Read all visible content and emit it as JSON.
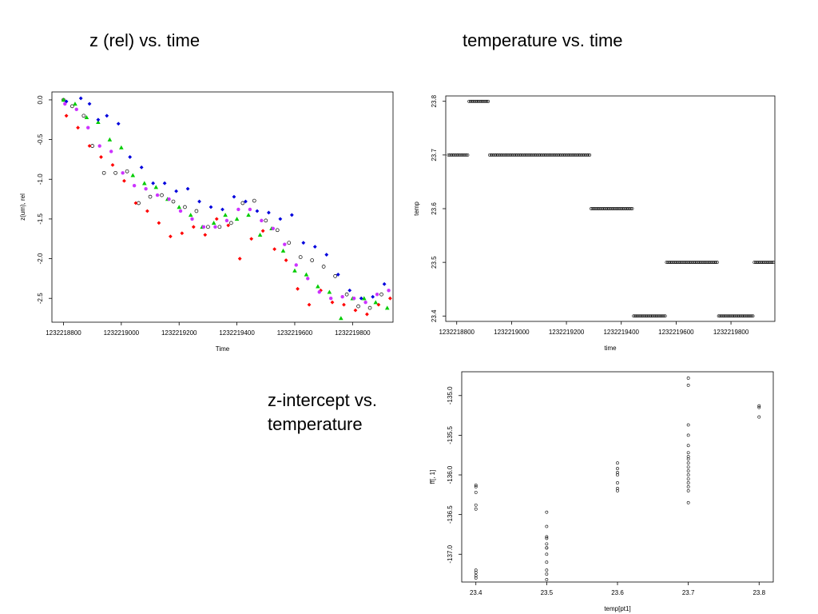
{
  "slide": {
    "title_1": "z (rel) vs. time",
    "title_2": "temperature vs. time",
    "title_3": "z-intercept vs. temperature"
  },
  "chart_data": [
    {
      "type": "scatter",
      "title": "",
      "xlabel": "Time",
      "ylabel": "z(um), rel",
      "xlim": [
        1232218760,
        1232219940
      ],
      "ylim": [
        -2.8,
        0.1
      ],
      "xticks": [
        1232218800,
        1232219000,
        1232219200,
        1232219400,
        1232219600,
        1232219800
      ],
      "xtick_labels": [
        "1232218800",
        "1232219000",
        "1232219200",
        "1232219400",
        "1232219600",
        "1232219800"
      ],
      "yticks": [
        0,
        -0.5,
        -1,
        -1.5,
        -2,
        -2.5
      ],
      "ytick_labels": [
        "0.0",
        "-0.5",
        "-1.0",
        "-1.5",
        "-2.0",
        "-2.5"
      ],
      "grid": false,
      "series": [
        {
          "color": "#000000",
          "marker": "circle-open",
          "x": [
            1232218800,
            1232218830,
            1232218870,
            1232218900,
            1232218940,
            1232218980,
            1232219020,
            1232219060,
            1232219100,
            1232219140,
            1232219180,
            1232219220,
            1232219260,
            1232219300,
            1232219340,
            1232219380,
            1232219420,
            1232219460,
            1232219500,
            1232219540,
            1232219580,
            1232219620,
            1232219660,
            1232219700,
            1232219740,
            1232219780,
            1232219820,
            1232219860,
            1232219900
          ],
          "y": [
            0,
            -0.08,
            -0.2,
            -0.58,
            -0.92,
            -0.92,
            -0.9,
            -1.3,
            -1.22,
            -1.2,
            -1.28,
            -1.35,
            -1.4,
            -1.6,
            -1.6,
            -1.55,
            -1.3,
            -1.27,
            -1.52,
            -1.64,
            -1.8,
            -1.98,
            -2.02,
            -2.1,
            -2.22,
            -2.45,
            -2.6,
            -2.62,
            -2.45
          ]
        },
        {
          "color": "#ff0000",
          "marker": "diamond",
          "x": [
            1232218810,
            1232218850,
            1232218890,
            1232218930,
            1232218970,
            1232219010,
            1232219050,
            1232219090,
            1232219130,
            1232219170,
            1232219210,
            1232219250,
            1232219290,
            1232219330,
            1232219370,
            1232219410,
            1232219450,
            1232219490,
            1232219530,
            1232219570,
            1232219610,
            1232219650,
            1232219690,
            1232219730,
            1232219770,
            1232219810,
            1232219850,
            1232219890,
            1232219930
          ],
          "y": [
            -0.2,
            -0.35,
            -0.58,
            -0.72,
            -0.82,
            -1.02,
            -1.3,
            -1.4,
            -1.55,
            -1.72,
            -1.68,
            -1.6,
            -1.7,
            -1.5,
            -1.58,
            -2.0,
            -1.75,
            -1.65,
            -1.88,
            -2.02,
            -2.38,
            -2.58,
            -2.4,
            -2.55,
            -2.58,
            -2.65,
            -2.7,
            -2.58,
            -2.5
          ]
        },
        {
          "color": "#00cc00",
          "marker": "triangle",
          "x": [
            1232218800,
            1232218840,
            1232218880,
            1232218920,
            1232218960,
            1232219000,
            1232219040,
            1232219080,
            1232219120,
            1232219160,
            1232219200,
            1232219240,
            1232219280,
            1232219320,
            1232219360,
            1232219400,
            1232219440,
            1232219480,
            1232219520,
            1232219560,
            1232219600,
            1232219640,
            1232219680,
            1232219720,
            1232219760,
            1232219800,
            1232219840,
            1232219880,
            1232219920
          ],
          "y": [
            0,
            -0.05,
            -0.22,
            -0.28,
            -0.5,
            -0.6,
            -0.95,
            -1.05,
            -1.1,
            -1.25,
            -1.35,
            -1.45,
            -1.6,
            -1.55,
            -1.45,
            -1.5,
            -1.45,
            -1.7,
            -1.62,
            -1.9,
            -2.15,
            -2.2,
            -2.35,
            -2.42,
            -2.75,
            -2.5,
            -2.5,
            -2.55,
            -2.62
          ]
        },
        {
          "color": "#0000dd",
          "marker": "diamond",
          "x": [
            1232218810,
            1232218860,
            1232218890,
            1232218920,
            1232218950,
            1232218990,
            1232219030,
            1232219070,
            1232219110,
            1232219150,
            1232219190,
            1232219230,
            1232219270,
            1232219310,
            1232219350,
            1232219390,
            1232219430,
            1232219470,
            1232219510,
            1232219550,
            1232219590,
            1232219630,
            1232219670,
            1232219710,
            1232219750,
            1232219790,
            1232219830,
            1232219870,
            1232219910
          ],
          "y": [
            -0.02,
            0.02,
            -0.05,
            -0.25,
            -0.2,
            -0.3,
            -0.72,
            -0.85,
            -1.05,
            -1.05,
            -1.15,
            -1.12,
            -1.28,
            -1.35,
            -1.38,
            -1.22,
            -1.28,
            -1.4,
            -1.42,
            -1.5,
            -1.45,
            -1.8,
            -1.85,
            -1.95,
            -2.2,
            -2.4,
            -2.5,
            -2.48,
            -2.32
          ]
        },
        {
          "color": "#cc33ff",
          "marker": "circle-filled",
          "x": [
            1232218805,
            1232218845,
            1232218885,
            1232218925,
            1232218965,
            1232219005,
            1232219045,
            1232219085,
            1232219125,
            1232219165,
            1232219205,
            1232219245,
            1232219285,
            1232219325,
            1232219365,
            1232219405,
            1232219445,
            1232219485,
            1232219525,
            1232219565,
            1232219605,
            1232219645,
            1232219685,
            1232219725,
            1232219765,
            1232219805,
            1232219845,
            1232219885,
            1232219925
          ],
          "y": [
            -0.05,
            -0.12,
            -0.35,
            -0.58,
            -0.65,
            -0.92,
            -1.08,
            -1.12,
            -1.2,
            -1.25,
            -1.4,
            -1.5,
            -1.6,
            -1.6,
            -1.52,
            -1.38,
            -1.38,
            -1.52,
            -1.62,
            -1.82,
            -2.08,
            -2.25,
            -2.42,
            -2.5,
            -2.48,
            -2.5,
            -2.55,
            -2.45,
            -2.4
          ]
        }
      ]
    },
    {
      "type": "scatter",
      "title": "",
      "xlabel": "time",
      "ylabel": "temp",
      "xlim": [
        1232218760,
        1232219960
      ],
      "ylim": [
        23.39,
        23.81
      ],
      "xticks": [
        1232218800,
        1232219000,
        1232219200,
        1232219400,
        1232219600,
        1232219800
      ],
      "xtick_labels": [
        "1232218800",
        "1232219000",
        "1232219200",
        "1232219400",
        "1232219600",
        "1232219800"
      ],
      "yticks": [
        23.4,
        23.5,
        23.6,
        23.7,
        23.8
      ],
      "ytick_labels": [
        "23.4",
        "23.5",
        "23.6",
        "23.7",
        "23.8"
      ],
      "grid": false,
      "segments": [
        {
          "x_start": 1232218770,
          "x_end": 1232218840,
          "y": 23.7
        },
        {
          "x_start": 1232218845,
          "x_end": 1232218915,
          "y": 23.8
        },
        {
          "x_start": 1232218920,
          "x_end": 1232219285,
          "y": 23.7
        },
        {
          "x_start": 1232219290,
          "x_end": 1232219440,
          "y": 23.6
        },
        {
          "x_start": 1232219445,
          "x_end": 1232219560,
          "y": 23.4
        },
        {
          "x_start": 1232219565,
          "x_end": 1232219750,
          "y": 23.5
        },
        {
          "x_start": 1232219755,
          "x_end": 1232219880,
          "y": 23.4
        },
        {
          "x_start": 1232219885,
          "x_end": 1232219955,
          "y": 23.5
        }
      ],
      "point_spacing": 5
    },
    {
      "type": "scatter",
      "title": "",
      "xlabel": "temp[pt1]",
      "ylabel": "ff[, 1]",
      "xlim": [
        23.38,
        23.82
      ],
      "ylim": [
        -137.35,
        -134.7
      ],
      "xticks": [
        23.4,
        23.5,
        23.6,
        23.7,
        23.8
      ],
      "xtick_labels": [
        "23.4",
        "23.5",
        "23.6",
        "23.7",
        "23.8"
      ],
      "yticks": [
        -135.0,
        -135.5,
        -136.0,
        -136.5,
        -137.0
      ],
      "ytick_labels": [
        "-135.0",
        "-135.5",
        "-136.0",
        "-136.5",
        "-137.0"
      ],
      "grid": false,
      "points": {
        "x": [
          23.4,
          23.4,
          23.4,
          23.4,
          23.4,
          23.4,
          23.4,
          23.4,
          23.4,
          23.5,
          23.5,
          23.5,
          23.5,
          23.5,
          23.5,
          23.5,
          23.5,
          23.5,
          23.5,
          23.5,
          23.5,
          23.6,
          23.6,
          23.6,
          23.6,
          23.6,
          23.6,
          23.6,
          23.7,
          23.7,
          23.7,
          23.7,
          23.7,
          23.7,
          23.7,
          23.7,
          23.7,
          23.7,
          23.7,
          23.7,
          23.7,
          23.7,
          23.7,
          23.7,
          23.7,
          23.8,
          23.8,
          23.8
        ],
        "y": [
          -136.13,
          -136.15,
          -136.22,
          -136.38,
          -136.43,
          -137.2,
          -137.23,
          -137.27,
          -137.3,
          -136.47,
          -136.65,
          -136.78,
          -136.87,
          -136.92,
          -137.0,
          -137.1,
          -137.2,
          -137.25,
          -137.32,
          -136.8,
          -136.92,
          -135.85,
          -135.92,
          -135.97,
          -136.0,
          -136.1,
          -136.17,
          -136.2,
          -134.78,
          -134.87,
          -135.37,
          -135.5,
          -135.63,
          -135.72,
          -135.77,
          -135.8,
          -135.85,
          -135.9,
          -135.95,
          -136.0,
          -136.05,
          -136.1,
          -136.15,
          -136.2,
          -136.35,
          -135.13,
          -135.15,
          -135.27
        ]
      }
    }
  ]
}
